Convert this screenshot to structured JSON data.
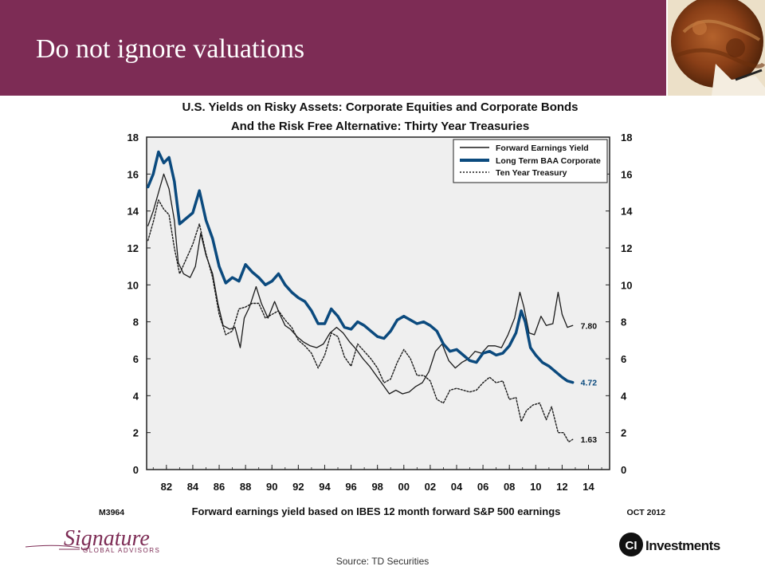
{
  "slide": {
    "title": "Do not ignore valuations",
    "source": "Source: TD Securities",
    "colors": {
      "header": "#7d2c55",
      "baa": "#0b4a7e",
      "plot_bg": "#efefef"
    },
    "logos": {
      "left_brand": "Signature",
      "left_sub": "GLOBAL ADVISORS",
      "right_mark": "CI",
      "right_word": "Investments"
    }
  },
  "chart_data": {
    "type": "line",
    "title": "U.S. Yields on Risky Assets: Corporate Equities and Corporate Bonds",
    "subtitle": "And the Risk Free Alternative: Thirty Year Treasuries",
    "xlabel": "Forward earnings yield based on IBES 12 month forward S&P 500 earnings",
    "code_left": "M3964",
    "date_right": "OCT 2012",
    "xlim": [
      1980.5,
      2015.6
    ],
    "ylim": [
      0,
      18
    ],
    "x_ticks": [
      "82",
      "84",
      "86",
      "88",
      "90",
      "92",
      "94",
      "96",
      "98",
      "00",
      "02",
      "04",
      "06",
      "08",
      "10",
      "12",
      "14"
    ],
    "y_ticks": [
      "0",
      "2",
      "4",
      "6",
      "8",
      "10",
      "12",
      "14",
      "16",
      "18"
    ],
    "legend_position": "top-right",
    "grid": false,
    "series": [
      {
        "name": "Forward Earnings Yield",
        "style": "solid-thin",
        "color": "#1a1a1a",
        "end_label": "7.80",
        "points": [
          [
            1980.6,
            13.2
          ],
          [
            1981.0,
            14.0
          ],
          [
            1981.4,
            15.0
          ],
          [
            1981.8,
            16.0
          ],
          [
            1982.2,
            15.2
          ],
          [
            1982.6,
            13.5
          ],
          [
            1982.9,
            11.2
          ],
          [
            1983.3,
            10.6
          ],
          [
            1983.8,
            10.4
          ],
          [
            1984.2,
            11.0
          ],
          [
            1984.6,
            12.8
          ],
          [
            1985.0,
            11.6
          ],
          [
            1985.5,
            10.6
          ],
          [
            1985.9,
            9.0
          ],
          [
            1986.3,
            7.8
          ],
          [
            1986.8,
            7.6
          ],
          [
            1987.2,
            7.7
          ],
          [
            1987.6,
            6.6
          ],
          [
            1987.9,
            8.2
          ],
          [
            1988.3,
            8.8
          ],
          [
            1988.8,
            9.9
          ],
          [
            1989.2,
            9.0
          ],
          [
            1989.7,
            8.2
          ],
          [
            1990.2,
            9.1
          ],
          [
            1990.6,
            8.4
          ],
          [
            1991.0,
            7.8
          ],
          [
            1991.4,
            7.6
          ],
          [
            1991.9,
            7.2
          ],
          [
            1992.4,
            6.9
          ],
          [
            1992.9,
            6.7
          ],
          [
            1993.4,
            6.6
          ],
          [
            1993.9,
            6.8
          ],
          [
            1994.4,
            7.4
          ],
          [
            1994.9,
            7.7
          ],
          [
            1995.4,
            7.4
          ],
          [
            1995.9,
            6.9
          ],
          [
            1996.4,
            6.5
          ],
          [
            1996.9,
            6.0
          ],
          [
            1997.4,
            5.6
          ],
          [
            1997.9,
            5.1
          ],
          [
            1998.4,
            4.6
          ],
          [
            1998.9,
            4.1
          ],
          [
            1999.4,
            4.3
          ],
          [
            1999.9,
            4.1
          ],
          [
            2000.4,
            4.2
          ],
          [
            2000.9,
            4.5
          ],
          [
            2001.4,
            4.7
          ],
          [
            2001.9,
            5.3
          ],
          [
            2002.4,
            6.4
          ],
          [
            2002.9,
            6.8
          ],
          [
            2003.4,
            5.9
          ],
          [
            2003.9,
            5.5
          ],
          [
            2004.4,
            5.8
          ],
          [
            2004.9,
            6.0
          ],
          [
            2005.4,
            6.4
          ],
          [
            2005.9,
            6.3
          ],
          [
            2006.4,
            6.7
          ],
          [
            2006.9,
            6.7
          ],
          [
            2007.4,
            6.6
          ],
          [
            2007.9,
            7.3
          ],
          [
            2008.4,
            8.2
          ],
          [
            2008.8,
            9.6
          ],
          [
            2009.1,
            8.8
          ],
          [
            2009.5,
            7.4
          ],
          [
            2009.9,
            7.3
          ],
          [
            2010.4,
            8.3
          ],
          [
            2010.8,
            7.8
          ],
          [
            2011.3,
            7.9
          ],
          [
            2011.7,
            9.6
          ],
          [
            2012.0,
            8.4
          ],
          [
            2012.4,
            7.7
          ],
          [
            2012.8,
            7.8
          ]
        ]
      },
      {
        "name": "Long Term BAA Corporate",
        "style": "solid-thick",
        "color": "#0b4a7e",
        "end_label": "4.72",
        "points": [
          [
            1980.6,
            15.3
          ],
          [
            1981.0,
            16.0
          ],
          [
            1981.4,
            17.2
          ],
          [
            1981.8,
            16.6
          ],
          [
            1982.2,
            16.9
          ],
          [
            1982.6,
            15.6
          ],
          [
            1983.0,
            13.3
          ],
          [
            1983.5,
            13.6
          ],
          [
            1984.0,
            13.9
          ],
          [
            1984.5,
            15.1
          ],
          [
            1985.0,
            13.5
          ],
          [
            1985.5,
            12.5
          ],
          [
            1986.0,
            11.0
          ],
          [
            1986.5,
            10.1
          ],
          [
            1987.0,
            10.4
          ],
          [
            1987.5,
            10.2
          ],
          [
            1988.0,
            11.1
          ],
          [
            1988.5,
            10.7
          ],
          [
            1989.0,
            10.4
          ],
          [
            1989.5,
            10.0
          ],
          [
            1990.0,
            10.2
          ],
          [
            1990.5,
            10.6
          ],
          [
            1991.0,
            10.0
          ],
          [
            1991.5,
            9.6
          ],
          [
            1992.0,
            9.3
          ],
          [
            1992.5,
            9.1
          ],
          [
            1993.0,
            8.6
          ],
          [
            1993.5,
            7.9
          ],
          [
            1994.0,
            7.9
          ],
          [
            1994.5,
            8.7
          ],
          [
            1995.0,
            8.3
          ],
          [
            1995.5,
            7.7
          ],
          [
            1996.0,
            7.6
          ],
          [
            1996.5,
            8.0
          ],
          [
            1997.0,
            7.8
          ],
          [
            1997.5,
            7.5
          ],
          [
            1998.0,
            7.2
          ],
          [
            1998.5,
            7.1
          ],
          [
            1999.0,
            7.5
          ],
          [
            1999.5,
            8.1
          ],
          [
            2000.0,
            8.3
          ],
          [
            2000.5,
            8.1
          ],
          [
            2001.0,
            7.9
          ],
          [
            2001.5,
            8.0
          ],
          [
            2002.0,
            7.8
          ],
          [
            2002.5,
            7.5
          ],
          [
            2003.0,
            6.8
          ],
          [
            2003.5,
            6.4
          ],
          [
            2004.0,
            6.5
          ],
          [
            2004.5,
            6.2
          ],
          [
            2005.0,
            5.9
          ],
          [
            2005.5,
            5.8
          ],
          [
            2006.0,
            6.3
          ],
          [
            2006.5,
            6.4
          ],
          [
            2007.0,
            6.2
          ],
          [
            2007.5,
            6.3
          ],
          [
            2008.0,
            6.7
          ],
          [
            2008.5,
            7.4
          ],
          [
            2008.9,
            8.6
          ],
          [
            2009.2,
            8.0
          ],
          [
            2009.6,
            6.6
          ],
          [
            2010.0,
            6.2
          ],
          [
            2010.5,
            5.8
          ],
          [
            2011.0,
            5.6
          ],
          [
            2011.5,
            5.3
          ],
          [
            2012.0,
            5.0
          ],
          [
            2012.4,
            4.8
          ],
          [
            2012.8,
            4.72
          ]
        ]
      },
      {
        "name": "Ten Year Treasury",
        "style": "dotted",
        "color": "#1a1a1a",
        "end_label": "1.63",
        "points": [
          [
            1980.6,
            12.4
          ],
          [
            1981.0,
            13.4
          ],
          [
            1981.4,
            14.6
          ],
          [
            1981.8,
            14.1
          ],
          [
            1982.2,
            13.8
          ],
          [
            1982.6,
            12.0
          ],
          [
            1983.0,
            10.6
          ],
          [
            1983.5,
            11.4
          ],
          [
            1984.0,
            12.2
          ],
          [
            1984.5,
            13.3
          ],
          [
            1985.0,
            11.7
          ],
          [
            1985.5,
            10.4
          ],
          [
            1986.0,
            8.4
          ],
          [
            1986.5,
            7.3
          ],
          [
            1987.0,
            7.5
          ],
          [
            1987.5,
            8.7
          ],
          [
            1988.0,
            8.8
          ],
          [
            1988.5,
            9.0
          ],
          [
            1989.0,
            9.0
          ],
          [
            1989.5,
            8.2
          ],
          [
            1990.0,
            8.4
          ],
          [
            1990.5,
            8.6
          ],
          [
            1991.0,
            8.1
          ],
          [
            1991.5,
            7.7
          ],
          [
            1992.0,
            7.0
          ],
          [
            1992.5,
            6.7
          ],
          [
            1993.0,
            6.3
          ],
          [
            1993.5,
            5.5
          ],
          [
            1994.0,
            6.2
          ],
          [
            1994.5,
            7.4
          ],
          [
            1995.0,
            7.2
          ],
          [
            1995.5,
            6.1
          ],
          [
            1996.0,
            5.6
          ],
          [
            1996.5,
            6.8
          ],
          [
            1997.0,
            6.4
          ],
          [
            1997.5,
            6.0
          ],
          [
            1998.0,
            5.5
          ],
          [
            1998.5,
            4.7
          ],
          [
            1999.0,
            4.9
          ],
          [
            1999.5,
            5.8
          ],
          [
            2000.0,
            6.5
          ],
          [
            2000.5,
            6.0
          ],
          [
            2001.0,
            5.1
          ],
          [
            2001.5,
            5.1
          ],
          [
            2002.0,
            4.8
          ],
          [
            2002.5,
            3.8
          ],
          [
            2003.0,
            3.6
          ],
          [
            2003.5,
            4.3
          ],
          [
            2004.0,
            4.4
          ],
          [
            2004.5,
            4.3
          ],
          [
            2005.0,
            4.2
          ],
          [
            2005.5,
            4.3
          ],
          [
            2006.0,
            4.7
          ],
          [
            2006.5,
            5.0
          ],
          [
            2007.0,
            4.7
          ],
          [
            2007.5,
            4.8
          ],
          [
            2008.0,
            3.8
          ],
          [
            2008.5,
            3.9
          ],
          [
            2008.9,
            2.6
          ],
          [
            2009.3,
            3.2
          ],
          [
            2009.8,
            3.5
          ],
          [
            2010.3,
            3.6
          ],
          [
            2010.8,
            2.7
          ],
          [
            2011.2,
            3.4
          ],
          [
            2011.7,
            2.0
          ],
          [
            2012.1,
            2.0
          ],
          [
            2012.5,
            1.5
          ],
          [
            2012.8,
            1.63
          ]
        ]
      }
    ]
  }
}
